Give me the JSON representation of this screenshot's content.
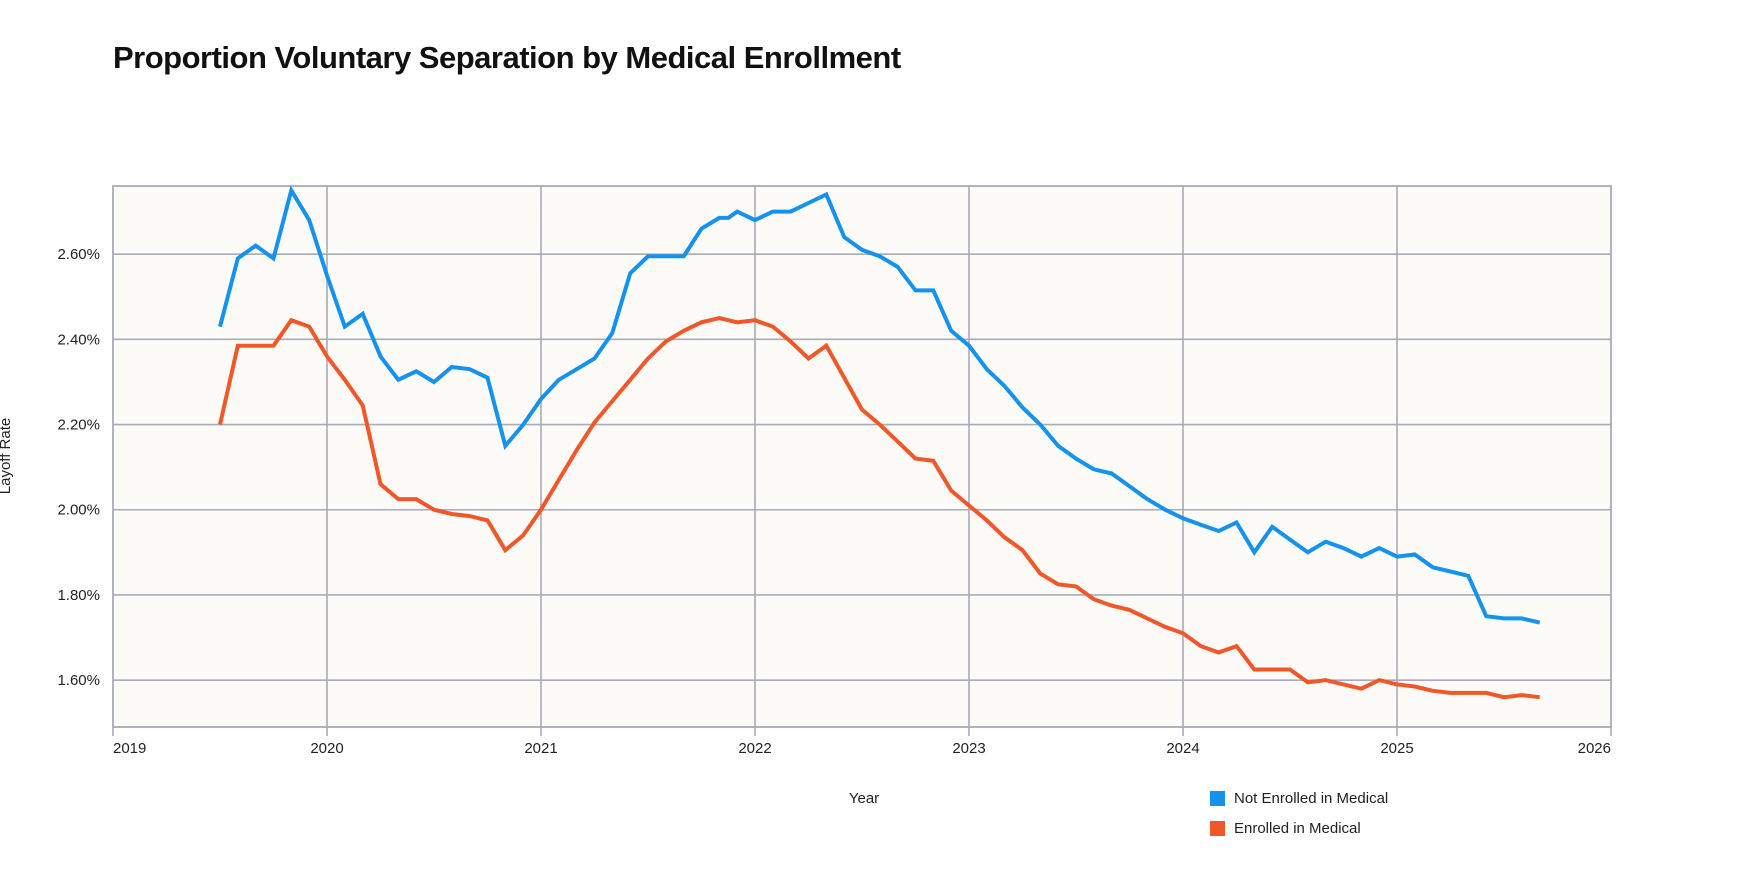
{
  "chart_data": {
    "type": "line",
    "title": "Proportion Voluntary Separation by Medical Enrollment",
    "xlabel": "Year",
    "ylabel": "Layoff Rate",
    "xlim": [
      2019,
      2026
    ],
    "ylim": [
      1.49,
      2.76
    ],
    "x_ticks": [
      "2019",
      "2020",
      "2021",
      "2022",
      "2023",
      "2024",
      "2025",
      "2026"
    ],
    "y_ticks": [
      {
        "value": 1.6,
        "label": "1.60%"
      },
      {
        "value": 1.8,
        "label": "1.80%"
      },
      {
        "value": 2.0,
        "label": "2.00%"
      },
      {
        "value": 2.2,
        "label": "2.20%"
      },
      {
        "value": 2.4,
        "label": "2.40%"
      },
      {
        "value": 2.6,
        "label": "2.60%"
      }
    ],
    "grid": true,
    "legend_position": "bottom-right",
    "series": [
      {
        "name": "Not Enrolled in Medical",
        "color": "#1592ee",
        "x": [
          2019.5,
          2019.583,
          2019.667,
          2019.75,
          2019.833,
          2019.917,
          2020.0,
          2020.083,
          2020.167,
          2020.25,
          2020.333,
          2020.417,
          2020.5,
          2020.583,
          2020.667,
          2020.75,
          2020.833,
          2020.917,
          2021.0,
          2021.083,
          2021.167,
          2021.25,
          2021.333,
          2021.417,
          2021.5,
          2021.583,
          2021.667,
          2021.75,
          2021.833,
          2021.875,
          2021.917,
          2022.0,
          2022.083,
          2022.167,
          2022.25,
          2022.333,
          2022.417,
          2022.5,
          2022.583,
          2022.667,
          2022.75,
          2022.833,
          2022.917,
          2023.0,
          2023.083,
          2023.167,
          2023.25,
          2023.333,
          2023.417,
          2023.5,
          2023.583,
          2023.667,
          2023.75,
          2023.833,
          2023.917,
          2024.0,
          2024.083,
          2024.167,
          2024.25,
          2024.333,
          2024.417,
          2024.5,
          2024.583,
          2024.667,
          2024.75,
          2024.833,
          2024.917,
          2025.0,
          2025.083,
          2025.167,
          2025.25,
          2025.333,
          2025.417,
          2025.5,
          2025.583,
          2025.667
        ],
        "values": [
          2.43,
          2.59,
          2.62,
          2.59,
          2.75,
          2.68,
          2.55,
          2.43,
          2.46,
          2.36,
          2.305,
          2.325,
          2.3,
          2.335,
          2.33,
          2.31,
          2.15,
          2.2,
          2.26,
          2.305,
          2.33,
          2.355,
          2.415,
          2.555,
          2.595,
          2.595,
          2.595,
          2.66,
          2.685,
          2.685,
          2.7,
          2.68,
          2.7,
          2.7,
          2.72,
          2.74,
          2.64,
          2.61,
          2.595,
          2.57,
          2.515,
          2.515,
          2.42,
          2.385,
          2.33,
          2.29,
          2.24,
          2.2,
          2.15,
          2.12,
          2.095,
          2.085,
          2.055,
          2.025,
          2.0,
          1.98,
          1.965,
          1.95,
          1.97,
          1.9,
          1.96,
          1.93,
          1.9,
          1.925,
          1.91,
          1.89,
          1.91,
          1.89,
          1.895,
          1.865,
          1.855,
          1.845,
          1.75,
          1.745,
          1.745,
          1.735
        ]
      },
      {
        "name": "Enrolled in Medical",
        "color": "#f2572a",
        "x": [
          2019.5,
          2019.583,
          2019.667,
          2019.75,
          2019.833,
          2019.917,
          2020.0,
          2020.083,
          2020.167,
          2020.25,
          2020.333,
          2020.417,
          2020.5,
          2020.583,
          2020.667,
          2020.75,
          2020.833,
          2020.917,
          2021.0,
          2021.083,
          2021.167,
          2021.25,
          2021.333,
          2021.417,
          2021.5,
          2021.583,
          2021.667,
          2021.75,
          2021.833,
          2021.917,
          2022.0,
          2022.083,
          2022.167,
          2022.25,
          2022.333,
          2022.417,
          2022.5,
          2022.583,
          2022.667,
          2022.75,
          2022.833,
          2022.917,
          2023.0,
          2023.083,
          2023.167,
          2023.25,
          2023.333,
          2023.417,
          2023.5,
          2023.583,
          2023.667,
          2023.75,
          2023.833,
          2023.917,
          2024.0,
          2024.083,
          2024.167,
          2024.25,
          2024.333,
          2024.417,
          2024.5,
          2024.583,
          2024.667,
          2024.75,
          2024.833,
          2024.917,
          2025.0,
          2025.083,
          2025.167,
          2025.25,
          2025.333,
          2025.417,
          2025.5,
          2025.583,
          2025.667
        ],
        "values": [
          2.2,
          2.385,
          2.385,
          2.385,
          2.445,
          2.43,
          2.36,
          2.305,
          2.245,
          2.06,
          2.025,
          2.025,
          2.0,
          1.99,
          1.985,
          1.975,
          1.905,
          1.94,
          2.0,
          2.07,
          2.14,
          2.205,
          2.255,
          2.305,
          2.355,
          2.395,
          2.42,
          2.44,
          2.45,
          2.44,
          2.445,
          2.43,
          2.395,
          2.355,
          2.385,
          2.31,
          2.235,
          2.2,
          2.16,
          2.12,
          2.115,
          2.045,
          2.01,
          1.975,
          1.935,
          1.905,
          1.85,
          1.825,
          1.82,
          1.79,
          1.775,
          1.765,
          1.745,
          1.725,
          1.71,
          1.68,
          1.665,
          1.68,
          1.625,
          1.625,
          1.625,
          1.595,
          1.6,
          1.59,
          1.58,
          1.6,
          1.59,
          1.585,
          1.575,
          1.57,
          1.57,
          1.57,
          1.56,
          1.565,
          1.56
        ]
      }
    ]
  }
}
